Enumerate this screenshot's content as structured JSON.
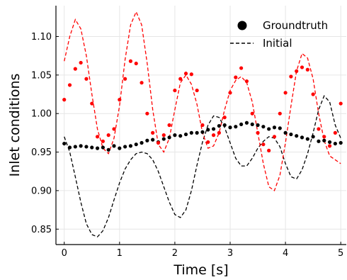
{
  "chart_data": {
    "type": "line",
    "title": "",
    "xlabel": "Time [s]",
    "ylabel": "Inlet conditions",
    "xlim": [
      -0.15,
      5.1
    ],
    "ylim": [
      0.83,
      1.14
    ],
    "x_ticks": [
      0,
      1,
      2,
      3,
      4,
      5
    ],
    "x_tick_labels": [
      "0",
      "1",
      "2",
      "3",
      "4",
      "5"
    ],
    "y_ticks": [
      0.85,
      0.9,
      0.95,
      1.0,
      1.05,
      1.1
    ],
    "y_tick_labels": [
      "0.85",
      "0.90",
      "0.95",
      "1.00",
      "1.05",
      "1.10"
    ],
    "grid": true,
    "legend_position": "top-right",
    "legend": [
      {
        "label": "Groundtruth",
        "marker": "circle",
        "color": "#000000"
      },
      {
        "label": "Initial",
        "marker": "dashed-line",
        "color": "#000000"
      }
    ],
    "series": [
      {
        "name": "Groundtruth",
        "kind": "scatter",
        "color": "#000000",
        "x": [
          0.0,
          0.1,
          0.2,
          0.3,
          0.4,
          0.5,
          0.6,
          0.7,
          0.8,
          0.9,
          1.0,
          1.1,
          1.2,
          1.3,
          1.4,
          1.5,
          1.6,
          1.7,
          1.8,
          1.9,
          2.0,
          2.1,
          2.2,
          2.3,
          2.4,
          2.5,
          2.6,
          2.7,
          2.8,
          2.9,
          3.0,
          3.1,
          3.2,
          3.3,
          3.4,
          3.5,
          3.6,
          3.7,
          3.8,
          3.9,
          4.0,
          4.1,
          4.2,
          4.3,
          4.4,
          4.5,
          4.6,
          4.7,
          4.8,
          4.9,
          5.0
        ],
        "y": [
          0.961,
          0.956,
          0.957,
          0.958,
          0.957,
          0.956,
          0.955,
          0.956,
          0.953,
          0.958,
          0.955,
          0.957,
          0.958,
          0.96,
          0.962,
          0.965,
          0.966,
          0.963,
          0.967,
          0.969,
          0.972,
          0.971,
          0.973,
          0.975,
          0.975,
          0.976,
          0.979,
          0.98,
          0.984,
          0.985,
          0.982,
          0.983,
          0.986,
          0.988,
          0.986,
          0.985,
          0.983,
          0.98,
          0.982,
          0.981,
          0.975,
          0.973,
          0.971,
          0.969,
          0.967,
          0.97,
          0.964,
          0.965,
          0.963,
          0.961,
          0.962
        ]
      },
      {
        "name": "",
        "kind": "scatter",
        "color": "#ff0000",
        "x": [
          0.0,
          0.1,
          0.2,
          0.3,
          0.4,
          0.5,
          0.6,
          0.7,
          0.8,
          0.9,
          1.0,
          1.1,
          1.2,
          1.3,
          1.4,
          1.5,
          1.6,
          1.7,
          1.8,
          1.9,
          2.0,
          2.1,
          2.2,
          2.3,
          2.4,
          2.5,
          2.6,
          2.7,
          2.8,
          2.9,
          3.0,
          3.1,
          3.2,
          3.3,
          3.4,
          3.5,
          3.6,
          3.7,
          3.8,
          3.9,
          4.0,
          4.1,
          4.2,
          4.3,
          4.4,
          4.5,
          4.6,
          4.7,
          4.8,
          4.9,
          5.0
        ],
        "y": [
          1.018,
          1.037,
          1.058,
          1.066,
          1.045,
          1.013,
          0.97,
          0.964,
          0.972,
          0.98,
          1.018,
          1.045,
          1.068,
          1.065,
          1.04,
          1.0,
          0.975,
          0.962,
          0.972,
          0.985,
          1.03,
          1.045,
          1.052,
          1.051,
          1.03,
          0.985,
          0.963,
          0.972,
          0.975,
          0.995,
          1.027,
          1.047,
          1.059,
          1.042,
          1.0,
          0.975,
          0.96,
          0.952,
          0.97,
          1.0,
          1.027,
          1.048,
          1.055,
          1.06,
          1.057,
          1.025,
          0.98,
          0.97,
          0.958,
          0.975,
          1.013
        ]
      },
      {
        "name": "Initial",
        "kind": "line",
        "style": "dashed",
        "color": "#000000",
        "x": [
          0.0,
          0.1,
          0.2,
          0.3,
          0.4,
          0.5,
          0.6,
          0.7,
          0.8,
          0.9,
          1.0,
          1.1,
          1.2,
          1.3,
          1.4,
          1.5,
          1.6,
          1.7,
          1.8,
          1.9,
          2.0,
          2.1,
          2.2,
          2.3,
          2.4,
          2.5,
          2.6,
          2.7,
          2.8,
          2.9,
          3.0,
          3.1,
          3.2,
          3.3,
          3.4,
          3.5,
          3.6,
          3.7,
          3.8,
          3.9,
          4.0,
          4.1,
          4.2,
          4.3,
          4.4,
          4.5,
          4.6,
          4.7,
          4.8,
          4.9,
          5.0
        ],
        "y": [
          0.97,
          0.95,
          0.918,
          0.885,
          0.857,
          0.843,
          0.84,
          0.848,
          0.865,
          0.888,
          0.91,
          0.928,
          0.94,
          0.948,
          0.95,
          0.948,
          0.94,
          0.925,
          0.905,
          0.885,
          0.869,
          0.865,
          0.875,
          0.9,
          0.933,
          0.963,
          0.985,
          0.997,
          0.995,
          0.982,
          0.962,
          0.942,
          0.932,
          0.932,
          0.942,
          0.955,
          0.964,
          0.97,
          0.968,
          0.957,
          0.935,
          0.918,
          0.915,
          0.927,
          0.948,
          0.975,
          1.005,
          1.023,
          1.015,
          0.985,
          0.968
        ]
      },
      {
        "name": "",
        "kind": "line",
        "style": "dashed",
        "color": "#ff0000",
        "x": [
          0.0,
          0.1,
          0.2,
          0.3,
          0.4,
          0.5,
          0.6,
          0.7,
          0.8,
          0.9,
          1.0,
          1.1,
          1.2,
          1.3,
          1.4,
          1.5,
          1.6,
          1.7,
          1.8,
          1.9,
          2.0,
          2.1,
          2.2,
          2.3,
          2.4,
          2.5,
          2.6,
          2.7,
          2.8,
          2.9,
          3.0,
          3.1,
          3.2,
          3.3,
          3.4,
          3.5,
          3.6,
          3.7,
          3.8,
          3.9,
          4.0,
          4.1,
          4.2,
          4.3,
          4.4,
          4.5,
          4.6,
          4.7,
          4.8,
          4.9,
          5.0
        ],
        "y": [
          1.068,
          1.1,
          1.122,
          1.11,
          1.075,
          1.025,
          0.98,
          0.955,
          0.948,
          0.968,
          1.01,
          1.07,
          1.115,
          1.132,
          1.115,
          1.065,
          1.005,
          0.96,
          0.95,
          0.968,
          1.005,
          1.04,
          1.05,
          1.038,
          1.012,
          0.975,
          0.955,
          0.958,
          0.975,
          1.005,
          1.03,
          1.043,
          1.048,
          1.04,
          1.015,
          0.975,
          0.935,
          0.905,
          0.9,
          0.92,
          0.962,
          1.01,
          1.055,
          1.078,
          1.072,
          1.045,
          1.0,
          0.965,
          0.945,
          0.94,
          0.935
        ]
      }
    ]
  }
}
